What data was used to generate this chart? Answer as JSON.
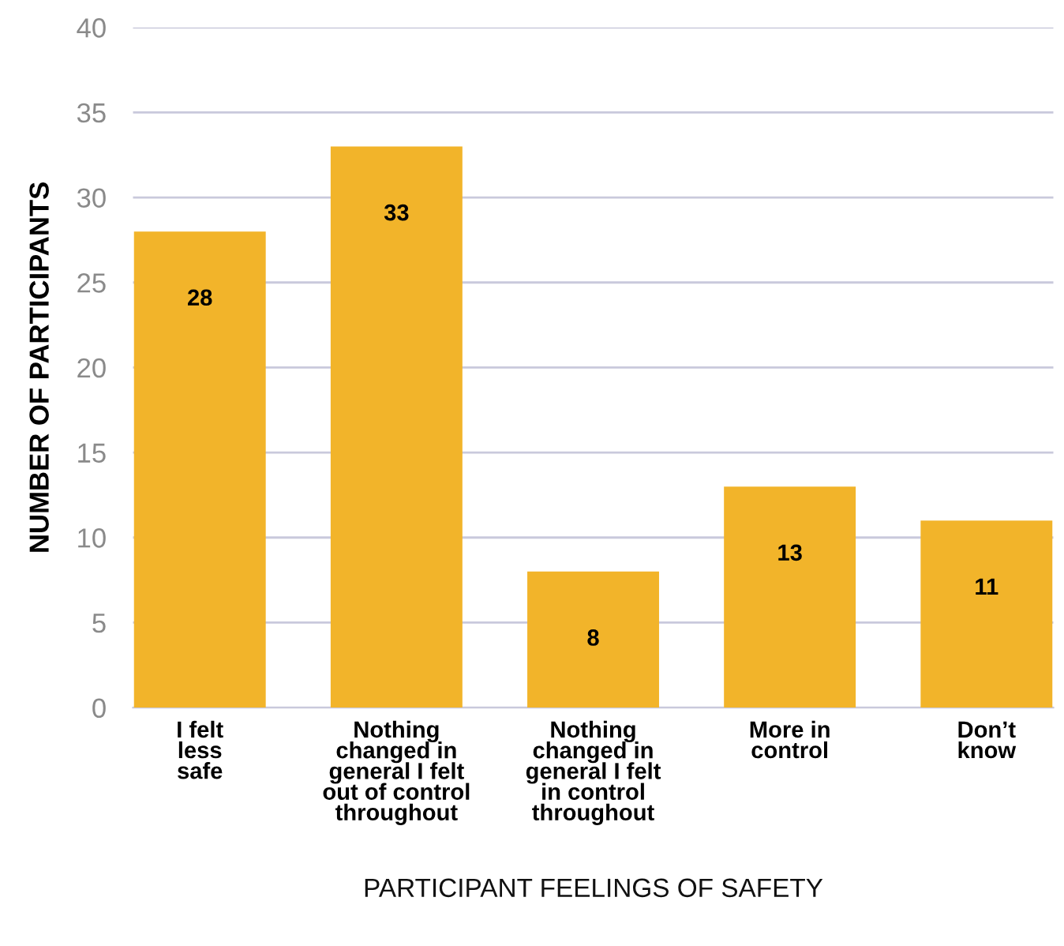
{
  "chart_data": {
    "type": "bar",
    "xlabel": "PARTICIPANT FEELINGS OF SAFETY",
    "ylabel": "NUMBER OF PARTICIPANTS",
    "categories": [
      "I felt\nless\nsafe",
      "Nothing\nchanged in\ngeneral I felt\nout of control\nthroughout",
      "Nothing\nchanged in\ngeneral I felt\nin control\nthroughout",
      "More in\ncontrol",
      "Don’t\nknow"
    ],
    "values": [
      28,
      33,
      8,
      13,
      11
    ],
    "color": "#f2b42a",
    "ylim": [
      0,
      40
    ],
    "yticks": [
      0,
      5,
      10,
      15,
      20,
      25,
      30,
      35,
      40
    ],
    "grid": "y",
    "data_labels": true
  }
}
